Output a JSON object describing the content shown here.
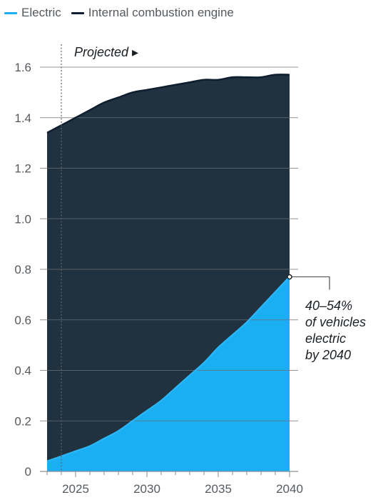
{
  "colors": {
    "electric": "#1aaef2",
    "electric_line": "#29b6f6",
    "ice": "#20313f",
    "ice_line": "#0f1e2e",
    "grid": "#6b7176",
    "text": "#555a5f"
  },
  "legend": [
    {
      "name": "Electric",
      "color": "#1aaef2"
    },
    {
      "name": "Internal combustion engine",
      "color": "#0f1e2e"
    }
  ],
  "projected_label": "Projected ▸",
  "annotation": {
    "lines": [
      "40–54%",
      "of vehicles",
      "electric",
      "by 2040"
    ],
    "x": 2040,
    "y": 0.77
  },
  "chart_data": {
    "type": "area",
    "stacked": false,
    "x": [
      2023,
      2024,
      2025,
      2026,
      2027,
      2028,
      2029,
      2030,
      2031,
      2032,
      2033,
      2034,
      2035,
      2036,
      2037,
      2038,
      2039,
      2040
    ],
    "series": [
      {
        "name": "Internal combustion engine",
        "values": [
          1.34,
          1.37,
          1.4,
          1.43,
          1.46,
          1.48,
          1.5,
          1.51,
          1.52,
          1.53,
          1.54,
          1.55,
          1.55,
          1.56,
          1.56,
          1.56,
          1.57,
          1.57
        ]
      },
      {
        "name": "Electric",
        "values": [
          0.04,
          0.06,
          0.08,
          0.1,
          0.13,
          0.16,
          0.2,
          0.24,
          0.28,
          0.33,
          0.38,
          0.43,
          0.49,
          0.54,
          0.59,
          0.65,
          0.71,
          0.77
        ]
      }
    ],
    "projected_start": 2024,
    "xlim": [
      2022.5,
      2040
    ],
    "ylim": [
      0,
      1.6
    ],
    "x_ticks": [
      2025,
      2030,
      2035,
      2040
    ],
    "y_ticks": [
      0,
      0.2,
      0.4,
      0.6,
      0.8,
      1.0,
      1.2,
      1.4,
      1.6
    ],
    "y_tick_labels": [
      "0",
      "0.2",
      "0.4",
      "0.6",
      "0.8",
      "1.0",
      "1.2",
      "1.4",
      "1.6"
    ],
    "grid": true,
    "legend_position": "top-left"
  }
}
